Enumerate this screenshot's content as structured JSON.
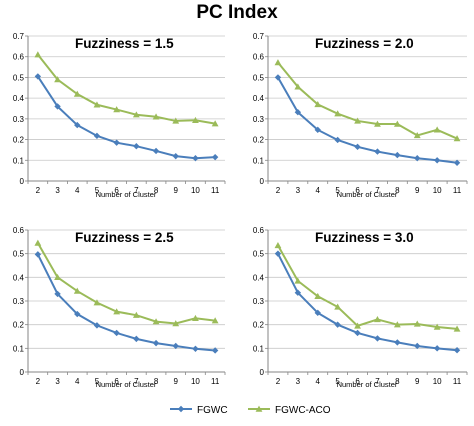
{
  "page_title": "PC Index",
  "colors": {
    "fgwc": "#4a7ebb",
    "fgwc_aco": "#9bbb59",
    "gridline": "#c8c8c8",
    "axis": "#868686"
  },
  "legend": [
    {
      "name": "FGWC",
      "color": "#4a7ebb",
      "marker": "diamond"
    },
    {
      "name": "FGWC-ACO",
      "color": "#9bbb59",
      "marker": "triangle"
    }
  ],
  "chart_data": [
    {
      "type": "line",
      "title": "Fuzziness = 1.5",
      "xlabel": "Number of Cluster",
      "ylabel": "",
      "x": [
        2,
        3,
        4,
        5,
        6,
        7,
        8,
        9,
        10,
        11
      ],
      "ylim": [
        0,
        0.7
      ],
      "yticks": [
        "0",
        "0.1",
        "0.2",
        "0.3",
        "0.4",
        "0.5",
        "0.6",
        "0.7"
      ],
      "grid": true,
      "series": [
        {
          "name": "FGWC",
          "values": [
            0.505,
            0.36,
            0.27,
            0.218,
            0.185,
            0.168,
            0.145,
            0.12,
            0.11,
            0.115
          ]
        },
        {
          "name": "FGWC-ACO",
          "values": [
            0.61,
            0.49,
            0.42,
            0.368,
            0.345,
            0.32,
            0.31,
            0.29,
            0.293,
            0.277
          ]
        }
      ]
    },
    {
      "type": "line",
      "title": "Fuzziness = 2.0",
      "xlabel": "Number of Cluster",
      "ylabel": "",
      "x": [
        2,
        3,
        4,
        5,
        6,
        7,
        8,
        9,
        10,
        11
      ],
      "ylim": [
        0,
        0.7
      ],
      "yticks": [
        "0",
        "0.1",
        "0.2",
        "0.3",
        "0.4",
        "0.5",
        "0.6",
        "0.7"
      ],
      "grid": true,
      "series": [
        {
          "name": "FGWC",
          "values": [
            0.5,
            0.332,
            0.247,
            0.198,
            0.165,
            0.142,
            0.125,
            0.11,
            0.1,
            0.088
          ]
        },
        {
          "name": "FGWC-ACO",
          "values": [
            0.572,
            0.455,
            0.37,
            0.325,
            0.29,
            0.275,
            0.275,
            0.22,
            0.247,
            0.205
          ]
        }
      ]
    },
    {
      "type": "line",
      "title": "Fuzziness = 2.5",
      "xlabel": "Number of Cluster",
      "ylabel": "",
      "x": [
        2,
        3,
        4,
        5,
        6,
        7,
        8,
        9,
        10,
        11
      ],
      "ylim": [
        0,
        0.6
      ],
      "yticks": [
        "0",
        "0.1",
        "0.2",
        "0.3",
        "0.4",
        "0.5",
        "0.6"
      ],
      "grid": true,
      "series": [
        {
          "name": "FGWC",
          "values": [
            0.497,
            0.33,
            0.245,
            0.197,
            0.165,
            0.14,
            0.122,
            0.11,
            0.098,
            0.091
          ]
        },
        {
          "name": "FGWC-ACO",
          "values": [
            0.545,
            0.4,
            0.342,
            0.293,
            0.255,
            0.24,
            0.213,
            0.205,
            0.227,
            0.217
          ]
        }
      ]
    },
    {
      "type": "line",
      "title": "Fuzziness = 3.0",
      "xlabel": "Number of Cluster",
      "ylabel": "",
      "x": [
        2,
        3,
        4,
        5,
        6,
        7,
        8,
        9,
        10,
        11
      ],
      "ylim": [
        0,
        0.6
      ],
      "yticks": [
        "0",
        "0.1",
        "0.2",
        "0.3",
        "0.4",
        "0.5",
        "0.6"
      ],
      "grid": true,
      "series": [
        {
          "name": "FGWC",
          "values": [
            0.5,
            0.335,
            0.25,
            0.2,
            0.165,
            0.142,
            0.125,
            0.11,
            0.1,
            0.092
          ]
        },
        {
          "name": "FGWC-ACO",
          "values": [
            0.535,
            0.385,
            0.32,
            0.275,
            0.195,
            0.222,
            0.2,
            0.203,
            0.19,
            0.182
          ]
        }
      ]
    }
  ]
}
